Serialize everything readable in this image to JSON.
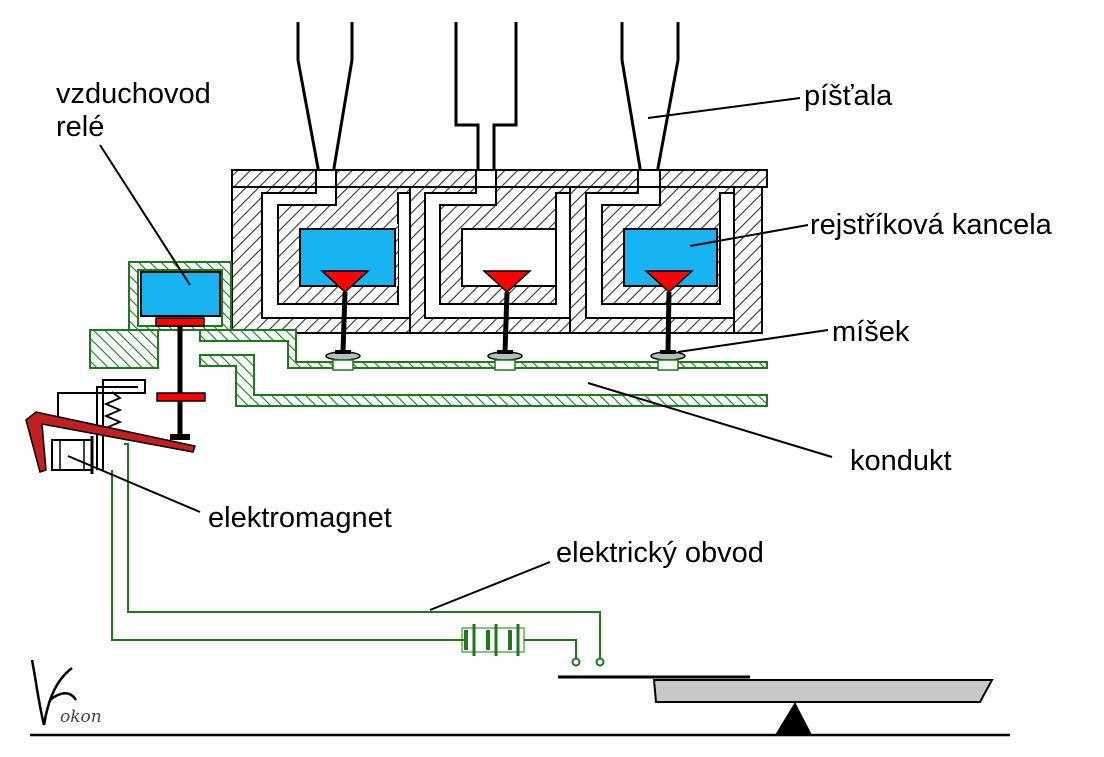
{
  "labels": {
    "relay_air_duct_line1": "vzduchovod",
    "relay_air_duct_line2": "relé",
    "pipe": "píšťala",
    "register_channel": "rejstříková kancela",
    "pouch": "míšek",
    "conduit": "kondukt",
    "electromagnet": "elektromagnet",
    "electric_circuit": "elektrický obvod"
  },
  "signature": "Kokon",
  "colors": {
    "wind": "#18b4f2",
    "valve": "#ff0000",
    "relay_hatch": "#1b7a1b",
    "wire": "#1b7a1b",
    "body_hatch": "#333333",
    "key": "#c8c8c8",
    "lever": "#c02020"
  }
}
